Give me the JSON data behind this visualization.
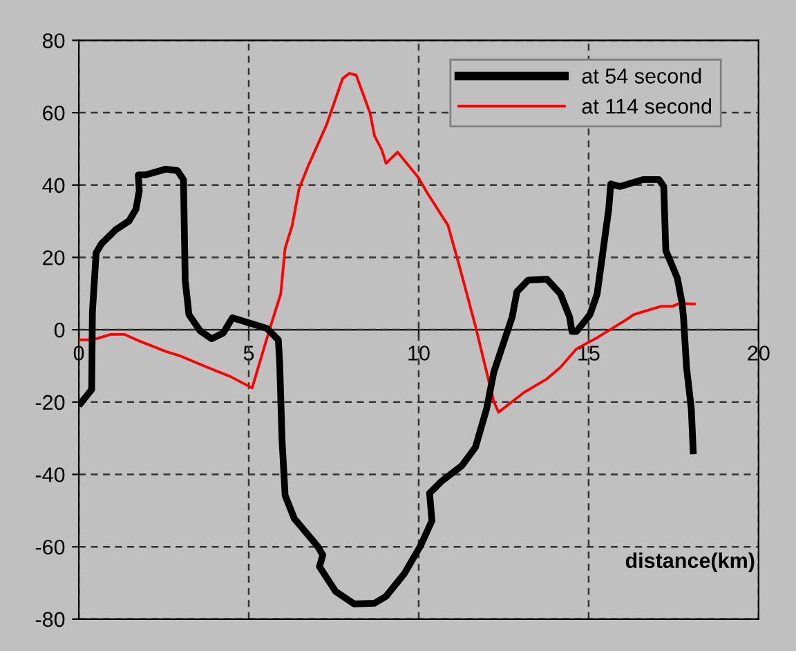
{
  "chart_data": {
    "type": "line",
    "xlabel": "distance(km)",
    "xlim": [
      0,
      20
    ],
    "xticks": [
      0,
      5,
      10,
      15,
      20
    ],
    "ylim": [
      -80,
      80
    ],
    "yticks": [
      -80,
      -60,
      -40,
      -20,
      0,
      20,
      40,
      60,
      80
    ],
    "grid": true,
    "legend": "top right",
    "line_style": "solid",
    "marker": "none",
    "series": [
      {
        "name": "at 54 second",
        "color": "#000000",
        "x": [
          0,
          0.38,
          0.4,
          0.51,
          0.67,
          1.08,
          1.48,
          1.68,
          1.78,
          1.75,
          1.96,
          2.56,
          2.9,
          3.08,
          3.13,
          3.24,
          3.57,
          3.91,
          4.25,
          4.52,
          4.72,
          5.53,
          5.87,
          5.91,
          5.98,
          6.07,
          6.34,
          7.02,
          7.18,
          7.08,
          7.56,
          8.1,
          8.7,
          9.04,
          9.58,
          10.05,
          10.39,
          10.32,
          10.66,
          11.27,
          11.67,
          12.0,
          12.21,
          12.75,
          12.89,
          13.22,
          13.77,
          14.17,
          14.44,
          14.51,
          14.64,
          15.04,
          15.25,
          15.59,
          15.65,
          15.92,
          16.6,
          17.07,
          17.21,
          17.27,
          17.61,
          17.75,
          17.79,
          17.88,
          18.02,
          18.08
        ],
        "values": [
          -21,
          -16.5,
          4.8,
          21.3,
          23.8,
          27.6,
          30.1,
          33.3,
          38.4,
          42.8,
          42.8,
          44.4,
          44,
          41.5,
          13.7,
          4.2,
          -0.3,
          -2.5,
          -0.9,
          3.3,
          2.7,
          0.4,
          -2.8,
          -9.1,
          -30.6,
          -45.8,
          -52.2,
          -59.8,
          -62.3,
          -65.5,
          -72.4,
          -75.8,
          -75.6,
          -73.7,
          -67.4,
          -59.8,
          -52.8,
          -45.2,
          -42,
          -37.6,
          -32.5,
          -21.8,
          -11.7,
          3.5,
          10.5,
          13.7,
          14,
          9.9,
          3.5,
          -0.5,
          -0.5,
          4.2,
          9.9,
          33.3,
          40.3,
          39.6,
          41.5,
          41.5,
          39.6,
          21.9,
          14.3,
          7.3,
          3.5,
          -10.4,
          -21.8,
          -34.4
        ]
      },
      {
        "name": "at 114 second",
        "color": "#ff0000",
        "x": [
          0,
          0.4,
          0.94,
          1.35,
          1.75,
          2.56,
          2.97,
          3.78,
          4.45,
          5.1,
          5.26,
          5.6,
          5.94,
          6.07,
          6.28,
          6.48,
          6.75,
          7.29,
          7.76,
          7.96,
          8.16,
          8.57,
          8.7,
          8.91,
          9.04,
          9.38,
          9.98,
          10.26,
          10.86,
          11.2,
          11.67,
          12.21,
          12.35,
          13.09,
          13.77,
          14.17,
          14.64,
          15.25,
          16.13,
          16.33,
          17.14,
          17.47,
          17.68,
          18.15
        ],
        "values": [
          -2.8,
          -2.8,
          -1.3,
          -1.3,
          -3,
          -6,
          -7.2,
          -10.4,
          -12.9,
          -16.1,
          -11,
          -0.3,
          9.9,
          22.5,
          28.9,
          39,
          45.3,
          56.7,
          69.4,
          70.9,
          70.4,
          59.9,
          53.6,
          49.8,
          46,
          49.1,
          42.2,
          37.7,
          28.9,
          17.5,
          1,
          -19.9,
          -22.8,
          -17.4,
          -13.6,
          -10.4,
          -5.3,
          -2.2,
          2.9,
          4.2,
          6.5,
          6.5,
          7.3,
          7.1
        ]
      }
    ]
  }
}
